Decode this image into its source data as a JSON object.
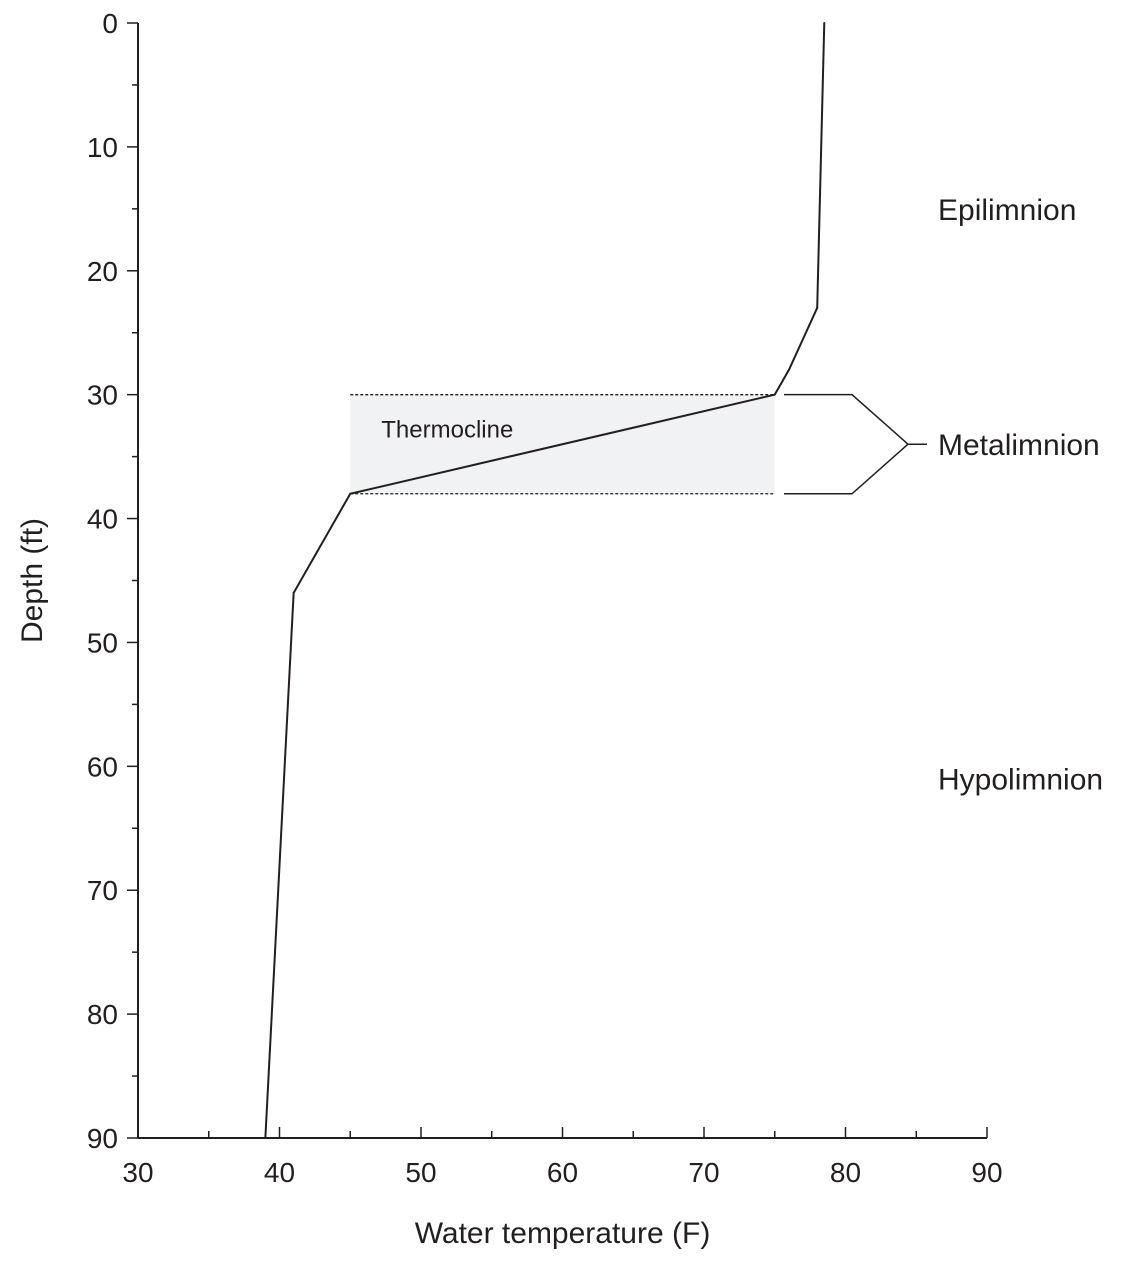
{
  "chart_data": {
    "type": "line",
    "title": "",
    "xlabel": "Water temperature (F)",
    "ylabel": "Depth (ft)",
    "xlim": [
      30,
      90
    ],
    "ylim": [
      0,
      90
    ],
    "y_inverted": true,
    "x_ticks": [
      30,
      40,
      50,
      60,
      70,
      80,
      90
    ],
    "y_ticks": [
      0,
      10,
      20,
      30,
      40,
      50,
      60,
      70,
      80,
      90
    ],
    "grid": false,
    "line_color": "#231f20",
    "series": [
      {
        "points": [
          {
            "x": 78.5,
            "y": 0
          },
          {
            "x": 78,
            "y": 23
          },
          {
            "x": 76,
            "y": 28
          },
          {
            "x": 75,
            "y": 30
          },
          {
            "x": 45,
            "y": 38
          },
          {
            "x": 41,
            "y": 46
          },
          {
            "x": 39,
            "y": 90
          }
        ]
      }
    ],
    "thermocline_band": {
      "label": "Thermocline",
      "x_range": [
        45,
        75
      ],
      "y_range": [
        30,
        38
      ],
      "fill": "#f1f2f3"
    },
    "zones": [
      {
        "label": "Epilimnion",
        "depth": 15
      },
      {
        "label": "Metalimnion",
        "depth": 34,
        "bracket": [
          30,
          38
        ]
      },
      {
        "label": "Hypolimnion",
        "depth": 61
      }
    ]
  }
}
